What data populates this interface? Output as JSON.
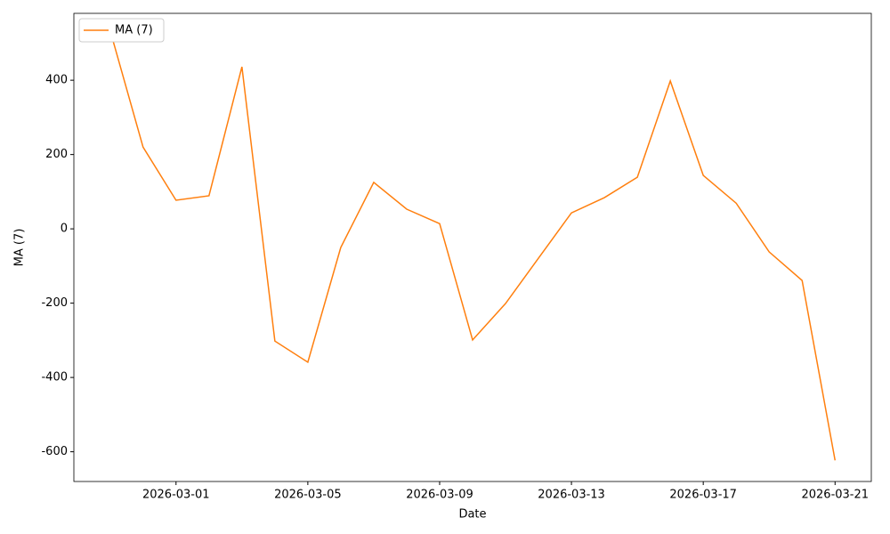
{
  "chart_data": {
    "type": "line",
    "x_label": "Date",
    "y_label": "MA (7)",
    "x": [
      "2026-02-27",
      "2026-02-28",
      "2026-03-01",
      "2026-03-02",
      "2026-03-03",
      "2026-03-04",
      "2026-03-05",
      "2026-03-06",
      "2026-03-07",
      "2026-03-08",
      "2026-03-09",
      "2026-03-10",
      "2026-03-11",
      "2026-03-12",
      "2026-03-13",
      "2026-03-14",
      "2026-03-15",
      "2026-03-16",
      "2026-03-17",
      "2026-03-18",
      "2026-03-19",
      "2026-03-20",
      "2026-03-21"
    ],
    "series": [
      {
        "name": "MA (7)",
        "color": "#ff7f0e",
        "values": [
          534,
          220,
          77,
          89,
          436,
          -302,
          -359,
          -50,
          125,
          53,
          14,
          -299,
          -201,
          -79,
          43,
          84,
          139,
          398,
          144,
          69,
          -62,
          -139,
          -623
        ]
      }
    ],
    "xlim": [
      "2026-02-25T21:36",
      "2026-03-22T02:24"
    ],
    "xticks": [
      "2026-03-01",
      "2026-03-05",
      "2026-03-09",
      "2026-03-13",
      "2026-03-17",
      "2026-03-21"
    ],
    "ylim": [
      -680,
      580
    ],
    "yticks": [
      -600,
      -400,
      -200,
      0,
      200,
      400
    ],
    "legend": "upper-left"
  }
}
